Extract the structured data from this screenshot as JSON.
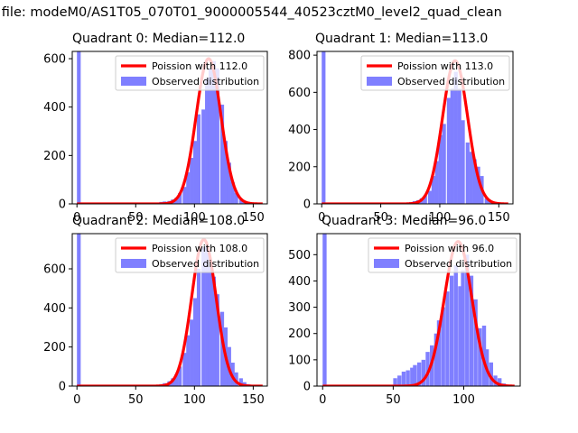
{
  "figure": {
    "suptitle": "n file: modeM0/AS1T05_070T01_9000005544_40523cztM0_level2_quad_clean"
  },
  "colors": {
    "hist": "#7f7fff",
    "curve": "#ff0000",
    "axis": "#000000"
  },
  "chart_data": [
    {
      "type": "bar",
      "title": "Quadrant 0: Median=112.0",
      "xlim": [
        -4,
        162
      ],
      "ylim": [
        0,
        630
      ],
      "xticks": [
        0,
        50,
        100,
        150
      ],
      "yticks": [
        0,
        200,
        400,
        600
      ],
      "legend": {
        "placement": "top-right",
        "entries": [
          "Poission with 112.0",
          "Observed distribution"
        ]
      },
      "mean": 112,
      "hist": {
        "bin_width": 3.2,
        "x": [
          0,
          64,
          67,
          70,
          73,
          77,
          80,
          83,
          86,
          90,
          93,
          96,
          99,
          102,
          106,
          109,
          112,
          115,
          118,
          122,
          125,
          128,
          131,
          134,
          138,
          141,
          144,
          147,
          150,
          154
        ],
        "values": [
          630,
          2,
          5,
          8,
          10,
          12,
          18,
          25,
          45,
          70,
          130,
          190,
          260,
          370,
          390,
          520,
          560,
          590,
          560,
          410,
          260,
          170,
          90,
          45,
          20,
          8,
          4,
          2,
          1,
          1
        ]
      },
      "curve": {
        "name": "Poission with 112.0",
        "lambda": 112,
        "peak": 600
      }
    },
    {
      "type": "bar",
      "title": "Quadrant 1: Median=113.0",
      "xlim": [
        -4,
        162
      ],
      "ylim": [
        0,
        820
      ],
      "xticks": [
        0,
        50,
        100,
        150
      ],
      "yticks": [
        0,
        200,
        400,
        600,
        800
      ],
      "legend": {
        "placement": "top-right",
        "entries": [
          "Poission with 113.0",
          "Observed distribution"
        ]
      },
      "mean": 113,
      "hist": {
        "bin_width": 3.2,
        "x": [
          0,
          70,
          74,
          77,
          80,
          83,
          86,
          90,
          93,
          96,
          99,
          102,
          106,
          109,
          112,
          115,
          118,
          122,
          125,
          128,
          131,
          134,
          138,
          141,
          144,
          147,
          150,
          154
        ],
        "values": [
          820,
          5,
          10,
          15,
          20,
          30,
          45,
          70,
          150,
          230,
          370,
          430,
          570,
          620,
          710,
          620,
          450,
          330,
          280,
          240,
          200,
          150,
          30,
          15,
          8,
          4,
          2,
          1
        ]
      },
      "curve": {
        "name": "Poission with 113.0",
        "lambda": 113,
        "peak": 770
      }
    },
    {
      "type": "bar",
      "title": "Quadrant 2: Median=108.0",
      "xlim": [
        -4,
        162
      ],
      "ylim": [
        0,
        780
      ],
      "xticks": [
        0,
        50,
        100,
        150
      ],
      "yticks": [
        0,
        200,
        400,
        600
      ],
      "legend": {
        "placement": "top-right",
        "entries": [
          "Poission with 108.0",
          "Observed distribution"
        ]
      },
      "mean": 108,
      "hist": {
        "bin_width": 3.2,
        "x": [
          0,
          64,
          67,
          70,
          73,
          77,
          80,
          83,
          86,
          90,
          93,
          96,
          99,
          102,
          106,
          109,
          112,
          115,
          118,
          122,
          125,
          128,
          131,
          134,
          138,
          141,
          144,
          147,
          150,
          154
        ],
        "values": [
          780,
          2,
          5,
          10,
          15,
          25,
          40,
          60,
          100,
          170,
          260,
          340,
          450,
          600,
          710,
          720,
          610,
          560,
          470,
          380,
          300,
          200,
          120,
          70,
          40,
          20,
          10,
          5,
          2,
          1
        ]
      },
      "curve": {
        "name": "Poission with 108.0",
        "lambda": 108,
        "peak": 750
      }
    },
    {
      "type": "bar",
      "title": "Quadrant 3: Median=96.0",
      "xlim": [
        -4,
        140
      ],
      "ylim": [
        0,
        580
      ],
      "xticks": [
        0,
        50,
        100
      ],
      "yticks": [
        0,
        100,
        200,
        300,
        400,
        500
      ],
      "legend": {
        "placement": "top-right",
        "entries": [
          "Poission with 96.0",
          "Observed distribution"
        ]
      },
      "mean": 96,
      "hist": {
        "bin_width": 2.8,
        "x": [
          0,
          50,
          53,
          56,
          59,
          62,
          64,
          67,
          70,
          73,
          76,
          79,
          81,
          84,
          87,
          90,
          93,
          96,
          98,
          101,
          104,
          107,
          110,
          113,
          115,
          118,
          121,
          124,
          127,
          129
        ],
        "values": [
          580,
          30,
          40,
          55,
          60,
          70,
          80,
          90,
          100,
          130,
          155,
          200,
          250,
          300,
          360,
          420,
          460,
          380,
          440,
          500,
          420,
          330,
          220,
          230,
          140,
          90,
          40,
          30,
          10,
          5
        ]
      },
      "curve": {
        "name": "Poission with 96.0",
        "lambda": 96,
        "peak": 550
      }
    }
  ]
}
